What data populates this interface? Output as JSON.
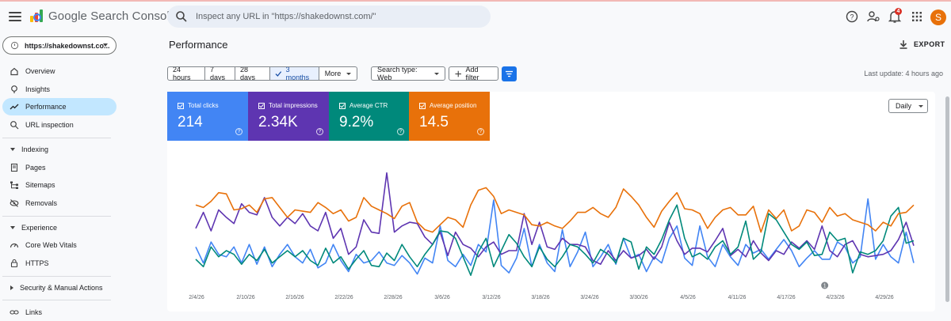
{
  "app": {
    "title": "Google Search Console"
  },
  "search": {
    "placeholder": "Inspect any URL in \"https://shakedownst.com/\""
  },
  "header": {
    "notification_count": "4",
    "avatar_letter": "S"
  },
  "property": {
    "label": "https://shakedownst.co..."
  },
  "sidebar": {
    "items": [
      {
        "label": "Overview",
        "icon": "home-icon"
      },
      {
        "label": "Insights",
        "icon": "insights-icon"
      },
      {
        "label": "Performance",
        "icon": "trending-icon",
        "active": true
      },
      {
        "label": "URL inspection",
        "icon": "search-icon"
      }
    ],
    "indexing": {
      "label": "Indexing",
      "items": [
        {
          "label": "Pages",
          "icon": "pages-icon"
        },
        {
          "label": "Sitemaps",
          "icon": "sitemap-icon"
        },
        {
          "label": "Removals",
          "icon": "removals-icon"
        }
      ]
    },
    "experience": {
      "label": "Experience",
      "items": [
        {
          "label": "Core Web Vitals",
          "icon": "gauge-icon"
        },
        {
          "label": "HTTPS",
          "icon": "lock-icon"
        }
      ]
    },
    "security": {
      "label": "Security & Manual Actions"
    },
    "links": {
      "label": "Links",
      "icon": "links-icon"
    }
  },
  "page": {
    "title": "Performance",
    "export_label": "EXPORT",
    "last_update": "Last update: 4 hours ago"
  },
  "date_ranges": [
    "24 hours",
    "7 days",
    "28 days",
    "3 months",
    "More"
  ],
  "selected_range": "3 months",
  "filters": {
    "search_type": "Search type: Web",
    "add_filter": "Add filter"
  },
  "granularity": "Daily",
  "metrics": [
    {
      "label": "Total clicks",
      "value": "214",
      "color": "#4285f4"
    },
    {
      "label": "Total impressions",
      "value": "2.34K",
      "color": "#5e35b1"
    },
    {
      "label": "Average CTR",
      "value": "9.2%",
      "color": "#00897b"
    },
    {
      "label": "Average position",
      "value": "14.5",
      "color": "#e8710a"
    }
  ],
  "chart_data": {
    "type": "line",
    "x_labels": [
      "2/4/26",
      "2/10/26",
      "2/16/26",
      "2/22/26",
      "2/28/26",
      "3/6/26",
      "3/12/26",
      "3/18/26",
      "3/24/26",
      "3/30/26",
      "4/5/26",
      "4/11/26",
      "4/17/26",
      "4/23/26",
      "4/29/26"
    ],
    "annotation": "1",
    "series": [
      {
        "name": "Total clicks",
        "color": "#4285f4",
        "values": [
          0.28,
          0.15,
          0.32,
          0.22,
          0.2,
          0.28,
          0.15,
          0.3,
          0.14,
          0.28,
          0.12,
          0.22,
          0.3,
          0.2,
          0.15,
          0.26,
          0.11,
          0.15,
          0.3,
          0.17,
          0.08,
          0.22,
          0.15,
          0.17,
          0.24,
          0.15,
          0.13,
          0.21,
          0.15,
          0.06,
          0.19,
          0.15,
          0.45,
          0.17,
          0.12,
          0.22,
          0.13,
          0.3,
          0.24,
          0.66,
          0.13,
          0.07,
          0.19,
          0.43,
          0.12,
          0.3,
          0.15,
          0.08,
          0.42,
          0.12,
          0.24,
          0.4,
          0.12,
          0.2,
          0.3,
          0.14,
          0.35,
          0.19,
          0.22,
          0.08,
          0.2,
          0.15,
          0.35,
          0.45,
          0.19,
          0.13,
          0.45,
          0.2,
          0.12,
          0.3,
          0.2,
          0.13,
          0.3,
          0.23,
          0.26,
          0.18,
          0.26,
          0.34,
          0.25,
          0.12,
          0.19,
          0.25,
          0.18,
          0.18,
          0.32,
          0.28,
          0.15,
          0.2,
          0.67,
          0.18,
          0.3,
          0.2,
          0.15,
          0.4,
          0.15
        ]
      },
      {
        "name": "Total impressions",
        "color": "#5e35b1",
        "values": [
          0.43,
          0.56,
          0.41,
          0.58,
          0.52,
          0.47,
          0.63,
          0.56,
          0.54,
          0.68,
          0.52,
          0.45,
          0.52,
          0.47,
          0.55,
          0.45,
          0.41,
          0.56,
          0.35,
          0.43,
          0.22,
          0.28,
          0.5,
          0.4,
          0.39,
          0.88,
          0.4,
          0.45,
          0.48,
          0.47,
          0.36,
          0.3,
          0.4,
          0.21,
          0.4,
          0.3,
          0.27,
          0.2,
          0.28,
          0.32,
          0.22,
          0.25,
          0.25,
          0.55,
          0.3,
          0.48,
          0.28,
          0.26,
          0.35,
          0.3,
          0.3,
          0.28,
          0.17,
          0.14,
          0.25,
          0.17,
          0.25,
          0.19,
          0.21,
          0.26,
          0.18,
          0.28,
          0.48,
          0.33,
          0.22,
          0.27,
          0.27,
          0.24,
          0.33,
          0.43,
          0.21,
          0.26,
          0.2,
          0.33,
          0.23,
          0.17,
          0.25,
          0.22,
          0.32,
          0.27,
          0.33,
          0.26,
          0.45,
          0.25,
          0.2,
          0.3,
          0.33,
          0.22,
          0.2,
          0.21,
          0.22,
          0.25,
          0.34,
          0.48,
          0.29
        ]
      },
      {
        "name": "Average CTR",
        "color": "#00897b",
        "values": [
          0.18,
          0.12,
          0.28,
          0.2,
          0.25,
          0.22,
          0.14,
          0.22,
          0.17,
          0.26,
          0.15,
          0.2,
          0.25,
          0.2,
          0.25,
          0.17,
          0.13,
          0.27,
          0.15,
          0.2,
          0.1,
          0.18,
          0.25,
          0.13,
          0.12,
          0.23,
          0.17,
          0.3,
          0.2,
          0.12,
          0.22,
          0.3,
          0.41,
          0.4,
          0.35,
          0.2,
          0.05,
          0.24,
          0.35,
          0.12,
          0.25,
          0.38,
          0.31,
          0.2,
          0.12,
          0.28,
          0.18,
          0.12,
          0.2,
          0.3,
          0.28,
          0.22,
          0.15,
          0.26,
          0.22,
          0.15,
          0.35,
          0.32,
          0.1,
          0.28,
          0.22,
          0.34,
          0.5,
          0.62,
          0.35,
          0.2,
          0.23,
          0.18,
          0.28,
          0.33,
          0.22,
          0.28,
          0.49,
          0.18,
          0.24,
          0.55,
          0.5,
          0.4,
          0.3,
          0.26,
          0.32,
          0.21,
          0.22,
          0.4,
          0.33,
          0.35,
          0.07,
          0.24,
          0.22,
          0.25,
          0.33,
          0.53,
          0.6,
          0.31,
          0.33
        ]
      },
      {
        "name": "Average position",
        "color": "#e8710a",
        "values": [
          0.62,
          0.6,
          0.65,
          0.72,
          0.71,
          0.58,
          0.59,
          0.62,
          0.56,
          0.67,
          0.68,
          0.6,
          0.52,
          0.58,
          0.57,
          0.56,
          0.64,
          0.6,
          0.55,
          0.58,
          0.49,
          0.52,
          0.68,
          0.61,
          0.58,
          0.55,
          0.51,
          0.61,
          0.64,
          0.48,
          0.42,
          0.4,
          0.46,
          0.52,
          0.5,
          0.44,
          0.62,
          0.74,
          0.76,
          0.69,
          0.55,
          0.58,
          0.56,
          0.54,
          0.46,
          0.45,
          0.48,
          0.45,
          0.43,
          0.49,
          0.56,
          0.56,
          0.6,
          0.55,
          0.52,
          0.6,
          0.75,
          0.69,
          0.62,
          0.52,
          0.44,
          0.57,
          0.65,
          0.72,
          0.59,
          0.58,
          0.55,
          0.43,
          0.52,
          0.58,
          0.6,
          0.54,
          0.54,
          0.61,
          0.4,
          0.58,
          0.51,
          0.58,
          0.41,
          0.45,
          0.58,
          0.56,
          0.48,
          0.6,
          0.53,
          0.55,
          0.5,
          0.48,
          0.46,
          0.41,
          0.48,
          0.45,
          0.55,
          0.56,
          0.62
        ]
      }
    ]
  }
}
